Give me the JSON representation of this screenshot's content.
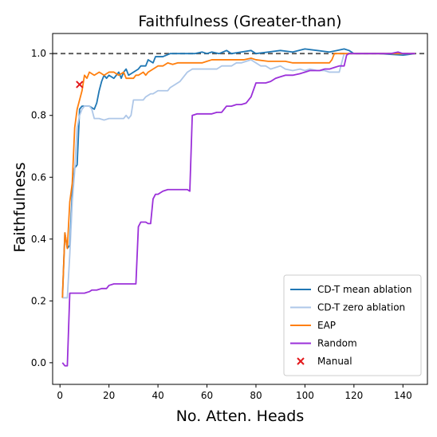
{
  "chart_data": {
    "type": "line",
    "title": "Faithfulness (Greater-than)",
    "xlabel": "No. Atten. Heads",
    "ylabel": "Faithfulness",
    "xlim": [
      -3,
      150
    ],
    "ylim": [
      -0.07,
      1.065
    ],
    "xticks": [
      0,
      20,
      40,
      60,
      80,
      100,
      120,
      140
    ],
    "yticks": [
      0.0,
      0.2,
      0.4,
      0.6,
      0.8,
      1.0
    ],
    "ytick_labels": [
      "0.0",
      "0.2",
      "0.4",
      "0.6",
      "0.8",
      "1.0"
    ],
    "reference_line": {
      "y": 1.0,
      "style": "dashed",
      "color": "#555555"
    },
    "legend_position": "lower-right",
    "series": [
      {
        "name": "CD-T mean ablation",
        "color": "#1f77b4",
        "points": [
          [
            1,
            0.21
          ],
          [
            2,
            0.42
          ],
          [
            3,
            0.37
          ],
          [
            4,
            0.38
          ],
          [
            5,
            0.55
          ],
          [
            6,
            0.63
          ],
          [
            7,
            0.64
          ],
          [
            8,
            0.82
          ],
          [
            9,
            0.83
          ],
          [
            10,
            0.83
          ],
          [
            12,
            0.83
          ],
          [
            14,
            0.82
          ],
          [
            15,
            0.84
          ],
          [
            16,
            0.88
          ],
          [
            17,
            0.91
          ],
          [
            18,
            0.93
          ],
          [
            19,
            0.92
          ],
          [
            20,
            0.93
          ],
          [
            22,
            0.92
          ],
          [
            24,
            0.94
          ],
          [
            25,
            0.92
          ],
          [
            26,
            0.94
          ],
          [
            27,
            0.95
          ],
          [
            28,
            0.93
          ],
          [
            30,
            0.94
          ],
          [
            32,
            0.95
          ],
          [
            33,
            0.96
          ],
          [
            35,
            0.96
          ],
          [
            36,
            0.98
          ],
          [
            38,
            0.97
          ],
          [
            39,
            0.99
          ],
          [
            42,
            0.99
          ],
          [
            45,
            1.0
          ],
          [
            50,
            1.0
          ],
          [
            55,
            1.0
          ],
          [
            58,
            1.005
          ],
          [
            60,
            1.0
          ],
          [
            62,
            1.005
          ],
          [
            65,
            1.0
          ],
          [
            68,
            1.01
          ],
          [
            70,
            1.0
          ],
          [
            74,
            1.005
          ],
          [
            78,
            1.01
          ],
          [
            80,
            1.0
          ],
          [
            85,
            1.005
          ],
          [
            90,
            1.01
          ],
          [
            95,
            1.005
          ],
          [
            100,
            1.015
          ],
          [
            105,
            1.01
          ],
          [
            110,
            1.005
          ],
          [
            113,
            1.01
          ],
          [
            116,
            1.015
          ],
          [
            118,
            1.01
          ],
          [
            120,
            1.0
          ],
          [
            130,
            1.0
          ],
          [
            140,
            0.995
          ],
          [
            145,
            1.0
          ]
        ]
      },
      {
        "name": "CD-T zero ablation",
        "color": "#aec7e8",
        "points": [
          [
            1,
            0.21
          ],
          [
            3,
            0.21
          ],
          [
            4,
            0.35
          ],
          [
            5,
            0.52
          ],
          [
            6,
            0.62
          ],
          [
            7,
            0.76
          ],
          [
            8,
            0.8
          ],
          [
            9,
            0.82
          ],
          [
            10,
            0.83
          ],
          [
            12,
            0.83
          ],
          [
            13,
            0.82
          ],
          [
            14,
            0.79
          ],
          [
            16,
            0.79
          ],
          [
            18,
            0.785
          ],
          [
            20,
            0.79
          ],
          [
            22,
            0.79
          ],
          [
            24,
            0.79
          ],
          [
            26,
            0.79
          ],
          [
            27,
            0.8
          ],
          [
            28,
            0.79
          ],
          [
            29,
            0.8
          ],
          [
            30,
            0.85
          ],
          [
            32,
            0.85
          ],
          [
            34,
            0.85
          ],
          [
            35,
            0.86
          ],
          [
            37,
            0.87
          ],
          [
            38,
            0.87
          ],
          [
            40,
            0.88
          ],
          [
            42,
            0.88
          ],
          [
            44,
            0.88
          ],
          [
            45,
            0.89
          ],
          [
            47,
            0.9
          ],
          [
            49,
            0.91
          ],
          [
            50,
            0.92
          ],
          [
            52,
            0.94
          ],
          [
            54,
            0.95
          ],
          [
            56,
            0.95
          ],
          [
            58,
            0.95
          ],
          [
            60,
            0.95
          ],
          [
            62,
            0.95
          ],
          [
            64,
            0.95
          ],
          [
            66,
            0.96
          ],
          [
            68,
            0.96
          ],
          [
            70,
            0.96
          ],
          [
            72,
            0.97
          ],
          [
            74,
            0.97
          ],
          [
            76,
            0.975
          ],
          [
            78,
            0.98
          ],
          [
            80,
            0.97
          ],
          [
            82,
            0.96
          ],
          [
            84,
            0.96
          ],
          [
            86,
            0.95
          ],
          [
            88,
            0.955
          ],
          [
            90,
            0.96
          ],
          [
            92,
            0.95
          ],
          [
            95,
            0.945
          ],
          [
            98,
            0.95
          ],
          [
            100,
            0.945
          ],
          [
            102,
            0.95
          ],
          [
            105,
            0.945
          ],
          [
            108,
            0.945
          ],
          [
            110,
            0.94
          ],
          [
            112,
            0.94
          ],
          [
            114,
            0.94
          ],
          [
            115,
            0.97
          ],
          [
            116,
            1.0
          ],
          [
            118,
            1.0
          ],
          [
            120,
            1.0
          ],
          [
            125,
            1.0
          ],
          [
            130,
            1.0
          ],
          [
            135,
            1.0
          ],
          [
            140,
            1.0
          ],
          [
            145,
            1.0
          ]
        ]
      },
      {
        "name": "EAP",
        "color": "#ff7f0e",
        "points": [
          [
            1,
            0.21
          ],
          [
            2,
            0.42
          ],
          [
            3,
            0.37
          ],
          [
            4,
            0.52
          ],
          [
            5,
            0.58
          ],
          [
            6,
            0.76
          ],
          [
            7,
            0.82
          ],
          [
            8,
            0.85
          ],
          [
            9,
            0.88
          ],
          [
            10,
            0.93
          ],
          [
            11,
            0.92
          ],
          [
            12,
            0.94
          ],
          [
            14,
            0.93
          ],
          [
            16,
            0.94
          ],
          [
            18,
            0.93
          ],
          [
            20,
            0.94
          ],
          [
            22,
            0.94
          ],
          [
            24,
            0.93
          ],
          [
            26,
            0.94
          ],
          [
            27,
            0.92
          ],
          [
            28,
            0.92
          ],
          [
            30,
            0.92
          ],
          [
            31,
            0.93
          ],
          [
            32,
            0.93
          ],
          [
            34,
            0.94
          ],
          [
            35,
            0.93
          ],
          [
            36,
            0.94
          ],
          [
            38,
            0.95
          ],
          [
            40,
            0.96
          ],
          [
            42,
            0.96
          ],
          [
            44,
            0.97
          ],
          [
            46,
            0.965
          ],
          [
            48,
            0.97
          ],
          [
            50,
            0.97
          ],
          [
            52,
            0.97
          ],
          [
            55,
            0.97
          ],
          [
            58,
            0.97
          ],
          [
            60,
            0.975
          ],
          [
            62,
            0.98
          ],
          [
            65,
            0.98
          ],
          [
            70,
            0.98
          ],
          [
            75,
            0.98
          ],
          [
            78,
            0.985
          ],
          [
            80,
            0.98
          ],
          [
            85,
            0.975
          ],
          [
            90,
            0.975
          ],
          [
            92,
            0.975
          ],
          [
            95,
            0.97
          ],
          [
            100,
            0.97
          ],
          [
            105,
            0.97
          ],
          [
            110,
            0.97
          ],
          [
            111,
            0.98
          ],
          [
            112,
            1.0
          ],
          [
            115,
            1.0
          ],
          [
            120,
            1.0
          ],
          [
            130,
            1.0
          ],
          [
            140,
            1.0
          ],
          [
            145,
            1.0
          ]
        ]
      },
      {
        "name": "Random",
        "color": "#9b30d9",
        "points": [
          [
            1,
            0.0
          ],
          [
            2,
            -0.01
          ],
          [
            3,
            -0.01
          ],
          [
            4,
            0.225
          ],
          [
            6,
            0.225
          ],
          [
            8,
            0.225
          ],
          [
            10,
            0.225
          ],
          [
            12,
            0.23
          ],
          [
            13,
            0.235
          ],
          [
            15,
            0.235
          ],
          [
            17,
            0.24
          ],
          [
            19,
            0.24
          ],
          [
            20,
            0.25
          ],
          [
            22,
            0.255
          ],
          [
            24,
            0.255
          ],
          [
            26,
            0.255
          ],
          [
            28,
            0.255
          ],
          [
            30,
            0.255
          ],
          [
            31,
            0.255
          ],
          [
            32,
            0.44
          ],
          [
            33,
            0.455
          ],
          [
            34,
            0.455
          ],
          [
            35,
            0.455
          ],
          [
            36,
            0.45
          ],
          [
            37,
            0.45
          ],
          [
            38,
            0.53
          ],
          [
            39,
            0.545
          ],
          [
            40,
            0.545
          ],
          [
            42,
            0.555
          ],
          [
            44,
            0.56
          ],
          [
            46,
            0.56
          ],
          [
            48,
            0.56
          ],
          [
            50,
            0.56
          ],
          [
            52,
            0.56
          ],
          [
            53,
            0.555
          ],
          [
            54,
            0.8
          ],
          [
            56,
            0.805
          ],
          [
            58,
            0.805
          ],
          [
            60,
            0.805
          ],
          [
            62,
            0.805
          ],
          [
            64,
            0.81
          ],
          [
            66,
            0.81
          ],
          [
            68,
            0.83
          ],
          [
            70,
            0.83
          ],
          [
            72,
            0.835
          ],
          [
            74,
            0.835
          ],
          [
            76,
            0.84
          ],
          [
            78,
            0.86
          ],
          [
            80,
            0.905
          ],
          [
            82,
            0.905
          ],
          [
            84,
            0.905
          ],
          [
            86,
            0.91
          ],
          [
            88,
            0.92
          ],
          [
            90,
            0.925
          ],
          [
            92,
            0.93
          ],
          [
            95,
            0.93
          ],
          [
            98,
            0.935
          ],
          [
            100,
            0.94
          ],
          [
            102,
            0.945
          ],
          [
            104,
            0.945
          ],
          [
            106,
            0.945
          ],
          [
            108,
            0.95
          ],
          [
            110,
            0.95
          ],
          [
            112,
            0.955
          ],
          [
            114,
            0.96
          ],
          [
            115,
            0.96
          ],
          [
            116,
            0.96
          ],
          [
            117,
            0.995
          ],
          [
            118,
            1.0
          ],
          [
            120,
            1.0
          ],
          [
            125,
            1.0
          ],
          [
            130,
            1.0
          ],
          [
            135,
            1.0
          ],
          [
            138,
            1.005
          ],
          [
            140,
            1.0
          ],
          [
            145,
            1.0
          ]
        ]
      }
    ],
    "markers": [
      {
        "name": "Manual",
        "color": "#e3191c",
        "symbol": "x",
        "x": 8,
        "y": 0.9
      }
    ]
  }
}
